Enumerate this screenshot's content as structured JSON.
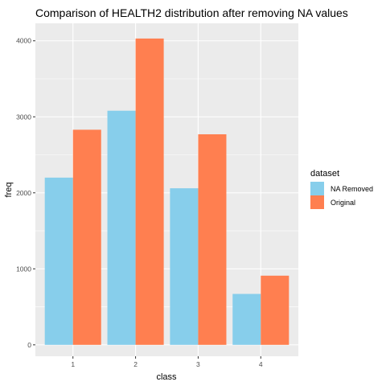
{
  "chart_data": {
    "type": "bar",
    "title": "Comparison of HEALTH2 distribution after removing NA values",
    "xlabel": "class",
    "ylabel": "freq",
    "categories": [
      "1",
      "2",
      "3",
      "4"
    ],
    "series": [
      {
        "name": "NA Removed",
        "values": [
          2200,
          3080,
          2060,
          670
        ],
        "color": "#87CEEB"
      },
      {
        "name": "Original",
        "values": [
          2830,
          4030,
          2770,
          910
        ],
        "color": "#FF7F50"
      }
    ],
    "y_ticks": [
      "0",
      "1000",
      "2000",
      "3000",
      "4000"
    ],
    "ylim": [
      -150,
      4230
    ],
    "grid": true,
    "panel_background": "#EBEBEB",
    "legend": {
      "title": "dataset",
      "placement": "right"
    }
  }
}
